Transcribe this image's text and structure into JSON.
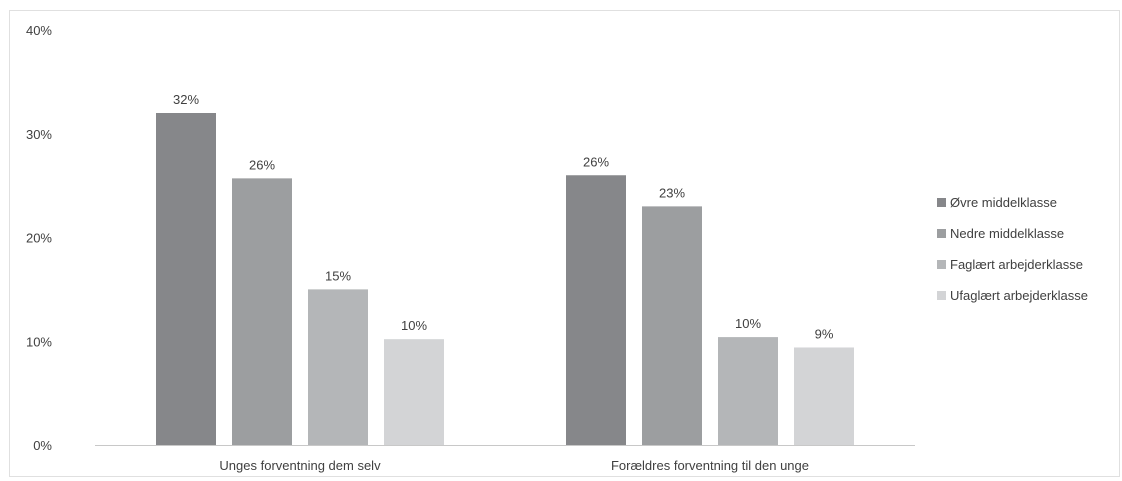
{
  "chart_data": {
    "type": "bar",
    "categories": [
      "Unges forventning dem selv",
      "Forældres forventning til den unge"
    ],
    "series": [
      {
        "name": "Øvre middelklasse",
        "values": [
          32,
          26
        ],
        "labels": [
          "32%",
          "26%"
        ],
        "color": "#86878a"
      },
      {
        "name": "Nedre middelklasse",
        "values": [
          25.7,
          23
        ],
        "labels": [
          "26%",
          "23%"
        ],
        "color": "#9c9ea0"
      },
      {
        "name": "Faglært arbejderklasse",
        "values": [
          15,
          10.4
        ],
        "labels": [
          "15%",
          "10%"
        ],
        "color": "#b4b6b8"
      },
      {
        "name": "Ufaglært arbejderklasse",
        "values": [
          10.2,
          9.4
        ],
        "labels": [
          "10%",
          "9%"
        ],
        "color": "#d3d4d6"
      }
    ],
    "ylim": [
      0,
      40
    ],
    "yticks": [
      "0%",
      "10%",
      "20%",
      "30%",
      "40%"
    ],
    "ytick_values": [
      0,
      10,
      20,
      30,
      40
    ],
    "grid": false,
    "legend_position": "right"
  }
}
